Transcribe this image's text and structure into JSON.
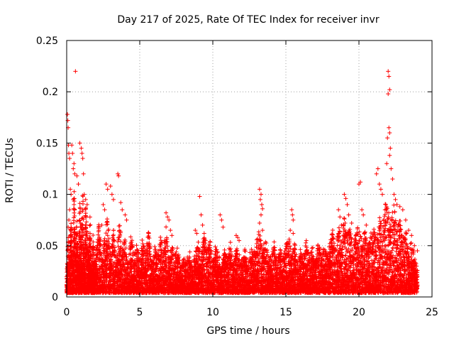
{
  "chart_data": {
    "type": "scatter",
    "title": "Day 217 of 2025, Rate Of TEC Index for receiver invr",
    "xlabel": "GPS time / hours",
    "ylabel": "ROTI / TECUs",
    "xlim": [
      0,
      25
    ],
    "ylim": [
      0,
      0.25
    ],
    "x_ticks": [
      0,
      5,
      10,
      15,
      20,
      25
    ],
    "x_tick_labels": [
      "0",
      "5",
      "10",
      "15",
      "20",
      "25"
    ],
    "y_ticks": [
      0,
      0.05,
      0.1,
      0.15,
      0.2,
      0.25
    ],
    "y_tick_labels": [
      "0",
      "0.05",
      "0.1",
      "0.15",
      "0.2",
      "0.25"
    ],
    "grid": true,
    "marker": "+",
    "marker_color": "#ff0000",
    "series": [
      {
        "name": "ROTI",
        "baseline_points": [
          [
            0.0,
            0.012
          ],
          [
            0.1,
            0.045
          ],
          [
            0.2,
            0.028
          ],
          [
            0.3,
            0.065
          ],
          [
            0.4,
            0.02
          ],
          [
            0.5,
            0.09
          ],
          [
            0.6,
            0.035
          ],
          [
            0.7,
            0.06
          ],
          [
            0.8,
            0.015
          ],
          [
            0.9,
            0.075
          ],
          [
            1.0,
            0.04
          ],
          [
            1.1,
            0.085
          ],
          [
            1.2,
            0.025
          ],
          [
            1.3,
            0.07
          ],
          [
            1.4,
            0.05
          ],
          [
            1.5,
            0.03
          ],
          [
            1.6,
            0.062
          ],
          [
            1.7,
            0.018
          ],
          [
            1.8,
            0.048
          ],
          [
            1.9,
            0.022
          ],
          [
            2.0,
            0.035
          ],
          [
            2.2,
            0.055
          ],
          [
            2.4,
            0.028
          ],
          [
            2.6,
            0.045
          ],
          [
            2.8,
            0.06
          ],
          [
            3.0,
            0.03
          ],
          [
            3.2,
            0.05
          ],
          [
            3.4,
            0.025
          ],
          [
            3.6,
            0.058
          ],
          [
            3.8,
            0.035
          ],
          [
            4.0,
            0.042
          ],
          [
            4.2,
            0.02
          ],
          [
            4.4,
            0.048
          ],
          [
            4.6,
            0.03
          ],
          [
            4.8,
            0.04
          ],
          [
            5.0,
            0.025
          ],
          [
            5.2,
            0.045
          ],
          [
            5.4,
            0.032
          ],
          [
            5.6,
            0.05
          ],
          [
            5.8,
            0.022
          ],
          [
            6.0,
            0.038
          ],
          [
            6.2,
            0.028
          ],
          [
            6.4,
            0.046
          ],
          [
            6.6,
            0.035
          ],
          [
            6.8,
            0.052
          ],
          [
            7.0,
            0.025
          ],
          [
            7.2,
            0.04
          ],
          [
            7.4,
            0.03
          ],
          [
            7.6,
            0.036
          ],
          [
            7.8,
            0.02
          ],
          [
            8.0,
            0.03
          ],
          [
            8.2,
            0.025
          ],
          [
            8.4,
            0.035
          ],
          [
            8.6,
            0.02
          ],
          [
            8.8,
            0.032
          ],
          [
            9.0,
            0.04
          ],
          [
            9.2,
            0.028
          ],
          [
            9.4,
            0.048
          ],
          [
            9.6,
            0.03
          ],
          [
            9.8,
            0.042
          ],
          [
            10.0,
            0.025
          ],
          [
            10.2,
            0.038
          ],
          [
            10.4,
            0.03
          ],
          [
            10.6,
            0.02
          ],
          [
            10.8,
            0.034
          ],
          [
            11.0,
            0.028
          ],
          [
            11.2,
            0.04
          ],
          [
            11.4,
            0.022
          ],
          [
            11.6,
            0.036
          ],
          [
            11.8,
            0.03
          ],
          [
            12.0,
            0.025
          ],
          [
            12.2,
            0.035
          ],
          [
            12.4,
            0.02
          ],
          [
            12.6,
            0.038
          ],
          [
            12.8,
            0.03
          ],
          [
            13.0,
            0.042
          ],
          [
            13.2,
            0.05
          ],
          [
            13.4,
            0.032
          ],
          [
            13.6,
            0.045
          ],
          [
            13.8,
            0.028
          ],
          [
            14.0,
            0.03
          ],
          [
            14.2,
            0.04
          ],
          [
            14.4,
            0.022
          ],
          [
            14.6,
            0.035
          ],
          [
            14.8,
            0.026
          ],
          [
            15.0,
            0.038
          ],
          [
            15.2,
            0.045
          ],
          [
            15.4,
            0.03
          ],
          [
            15.6,
            0.04
          ],
          [
            15.8,
            0.025
          ],
          [
            16.0,
            0.035
          ],
          [
            16.2,
            0.028
          ],
          [
            16.4,
            0.042
          ],
          [
            16.6,
            0.03
          ],
          [
            16.8,
            0.038
          ],
          [
            17.0,
            0.025
          ],
          [
            17.2,
            0.04
          ],
          [
            17.4,
            0.032
          ],
          [
            17.6,
            0.036
          ],
          [
            17.8,
            0.03
          ],
          [
            18.0,
            0.038
          ],
          [
            18.2,
            0.05
          ],
          [
            18.4,
            0.032
          ],
          [
            18.6,
            0.055
          ],
          [
            18.8,
            0.04
          ],
          [
            19.0,
            0.06
          ],
          [
            19.2,
            0.045
          ],
          [
            19.4,
            0.052
          ],
          [
            19.6,
            0.035
          ],
          [
            19.8,
            0.048
          ],
          [
            20.0,
            0.055
          ],
          [
            20.2,
            0.04
          ],
          [
            20.4,
            0.05
          ],
          [
            20.6,
            0.035
          ],
          [
            20.8,
            0.046
          ],
          [
            21.0,
            0.052
          ],
          [
            21.2,
            0.04
          ],
          [
            21.4,
            0.062
          ],
          [
            21.6,
            0.05
          ],
          [
            21.8,
            0.07
          ],
          [
            22.0,
            0.065
          ],
          [
            22.2,
            0.058
          ],
          [
            22.4,
            0.072
          ],
          [
            22.6,
            0.05
          ],
          [
            22.8,
            0.06
          ],
          [
            23.0,
            0.045
          ],
          [
            23.2,
            0.052
          ],
          [
            23.4,
            0.035
          ],
          [
            23.6,
            0.042
          ],
          [
            23.8,
            0.028
          ],
          [
            24.0,
            0.02
          ]
        ],
        "points": [
          [
            0.6,
            0.22
          ],
          [
            0.05,
            0.178
          ],
          [
            0.08,
            0.172
          ],
          [
            0.1,
            0.165
          ],
          [
            0.12,
            0.148
          ],
          [
            0.15,
            0.14
          ],
          [
            0.2,
            0.135
          ],
          [
            0.35,
            0.148
          ],
          [
            0.4,
            0.14
          ],
          [
            0.45,
            0.125
          ],
          [
            0.5,
            0.13
          ],
          [
            0.55,
            0.12
          ],
          [
            0.7,
            0.118
          ],
          [
            0.8,
            0.11
          ],
          [
            0.9,
            0.15
          ],
          [
            1.0,
            0.145
          ],
          [
            1.05,
            0.14
          ],
          [
            1.1,
            0.135
          ],
          [
            1.15,
            0.12
          ],
          [
            1.2,
            0.1
          ],
          [
            1.3,
            0.095
          ],
          [
            1.4,
            0.09
          ],
          [
            0.25,
            0.105
          ],
          [
            0.3,
            0.1
          ],
          [
            0.45,
            0.095
          ],
          [
            0.2,
            0.085
          ],
          [
            0.15,
            0.075
          ],
          [
            0.1,
            0.068
          ],
          [
            2.7,
            0.11
          ],
          [
            2.8,
            0.105
          ],
          [
            3.0,
            0.108
          ],
          [
            3.1,
            0.1
          ],
          [
            3.2,
            0.095
          ],
          [
            3.5,
            0.12
          ],
          [
            3.55,
            0.118
          ],
          [
            3.7,
            0.092
          ],
          [
            3.8,
            0.085
          ],
          [
            4.0,
            0.08
          ],
          [
            4.1,
            0.075
          ],
          [
            2.5,
            0.09
          ],
          [
            2.6,
            0.085
          ],
          [
            2.4,
            0.07
          ],
          [
            2.2,
            0.065
          ],
          [
            6.8,
            0.082
          ],
          [
            6.9,
            0.078
          ],
          [
            7.0,
            0.075
          ],
          [
            7.1,
            0.065
          ],
          [
            7.2,
            0.06
          ],
          [
            9.1,
            0.098
          ],
          [
            9.2,
            0.08
          ],
          [
            9.3,
            0.07
          ],
          [
            8.8,
            0.065
          ],
          [
            8.9,
            0.062
          ],
          [
            9.5,
            0.055
          ],
          [
            9.8,
            0.05
          ],
          [
            10.5,
            0.08
          ],
          [
            10.6,
            0.075
          ],
          [
            10.7,
            0.068
          ],
          [
            11.6,
            0.06
          ],
          [
            11.7,
            0.058
          ],
          [
            11.8,
            0.055
          ],
          [
            13.2,
            0.105
          ],
          [
            13.3,
            0.1
          ],
          [
            13.25,
            0.095
          ],
          [
            13.35,
            0.09
          ],
          [
            13.4,
            0.086
          ],
          [
            13.3,
            0.08
          ],
          [
            13.2,
            0.072
          ],
          [
            13.4,
            0.065
          ],
          [
            15.4,
            0.085
          ],
          [
            15.45,
            0.08
          ],
          [
            15.5,
            0.075
          ],
          [
            15.3,
            0.065
          ],
          [
            15.5,
            0.062
          ],
          [
            18.6,
            0.085
          ],
          [
            18.7,
            0.078
          ],
          [
            18.8,
            0.07
          ],
          [
            19.0,
            0.1
          ],
          [
            19.1,
            0.096
          ],
          [
            19.2,
            0.09
          ],
          [
            19.3,
            0.08
          ],
          [
            19.5,
            0.072
          ],
          [
            20.0,
            0.11
          ],
          [
            20.1,
            0.112
          ],
          [
            20.2,
            0.085
          ],
          [
            20.3,
            0.08
          ],
          [
            20.5,
            0.07
          ],
          [
            21.2,
            0.12
          ],
          [
            21.3,
            0.125
          ],
          [
            21.4,
            0.11
          ],
          [
            21.5,
            0.105
          ],
          [
            21.6,
            0.1
          ],
          [
            22.0,
            0.22
          ],
          [
            22.05,
            0.215
          ],
          [
            22.1,
            0.202
          ],
          [
            22.0,
            0.198
          ],
          [
            22.05,
            0.165
          ],
          [
            22.1,
            0.16
          ],
          [
            21.95,
            0.155
          ],
          [
            22.15,
            0.145
          ],
          [
            22.1,
            0.138
          ],
          [
            21.9,
            0.13
          ],
          [
            22.2,
            0.125
          ],
          [
            22.3,
            0.115
          ],
          [
            22.4,
            0.1
          ],
          [
            22.5,
            0.095
          ],
          [
            22.6,
            0.09
          ],
          [
            22.8,
            0.088
          ],
          [
            23.0,
            0.085
          ],
          [
            23.2,
            0.075
          ],
          [
            23.4,
            0.065
          ],
          [
            23.6,
            0.06
          ],
          [
            23.8,
            0.05
          ],
          [
            24.0,
            0.045
          ]
        ]
      }
    ]
  }
}
